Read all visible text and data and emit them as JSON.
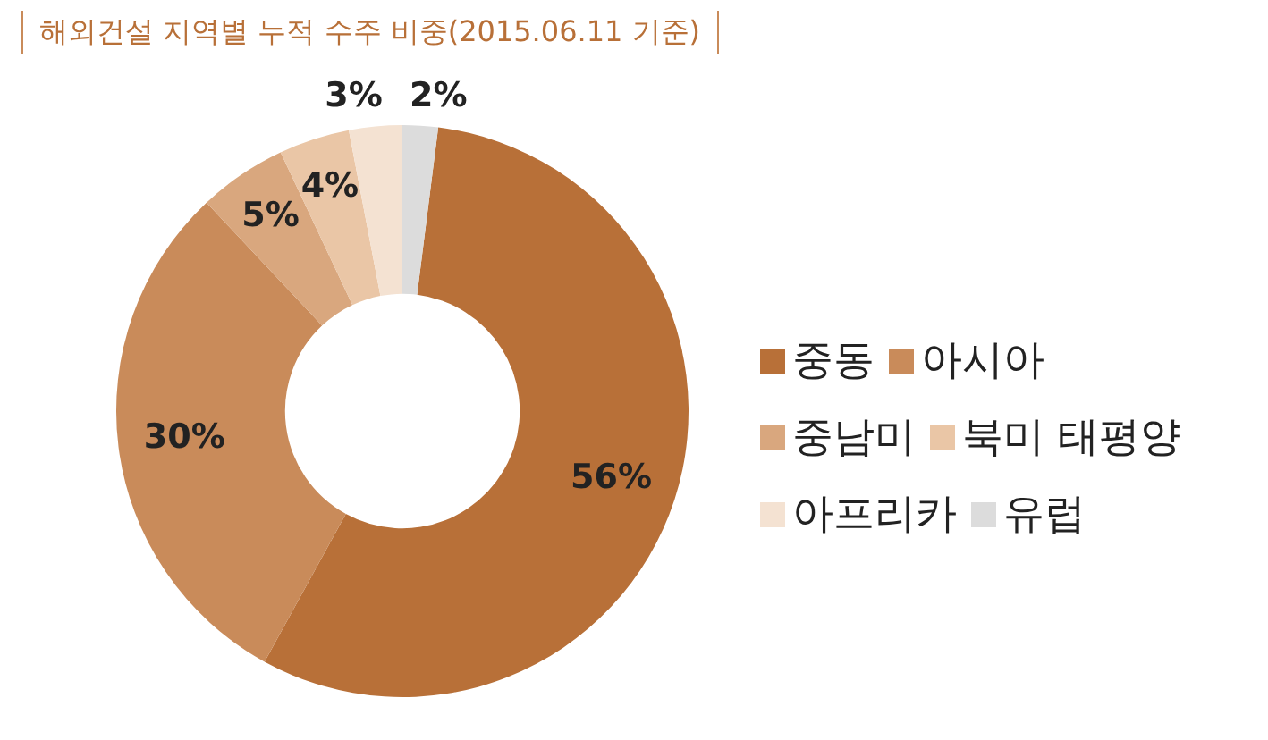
{
  "chart_data": {
    "type": "donut",
    "title": "해외건설 지역별 누적 수주 비중(2015.06.11 기준)",
    "categories": [
      "중동",
      "아시아",
      "중남미",
      "북미 태평양",
      "아프리카",
      "유럽"
    ],
    "values": [
      56,
      30,
      5,
      4,
      3,
      2
    ],
    "value_labels": [
      "56%",
      "30%",
      "5%",
      "4%",
      "3%",
      "2%"
    ],
    "colors": [
      "#b87038",
      "#c98b5a",
      "#d9a77e",
      "#eac6a6",
      "#f4e2d2",
      "#dcdcdc"
    ],
    "legend": "right"
  }
}
